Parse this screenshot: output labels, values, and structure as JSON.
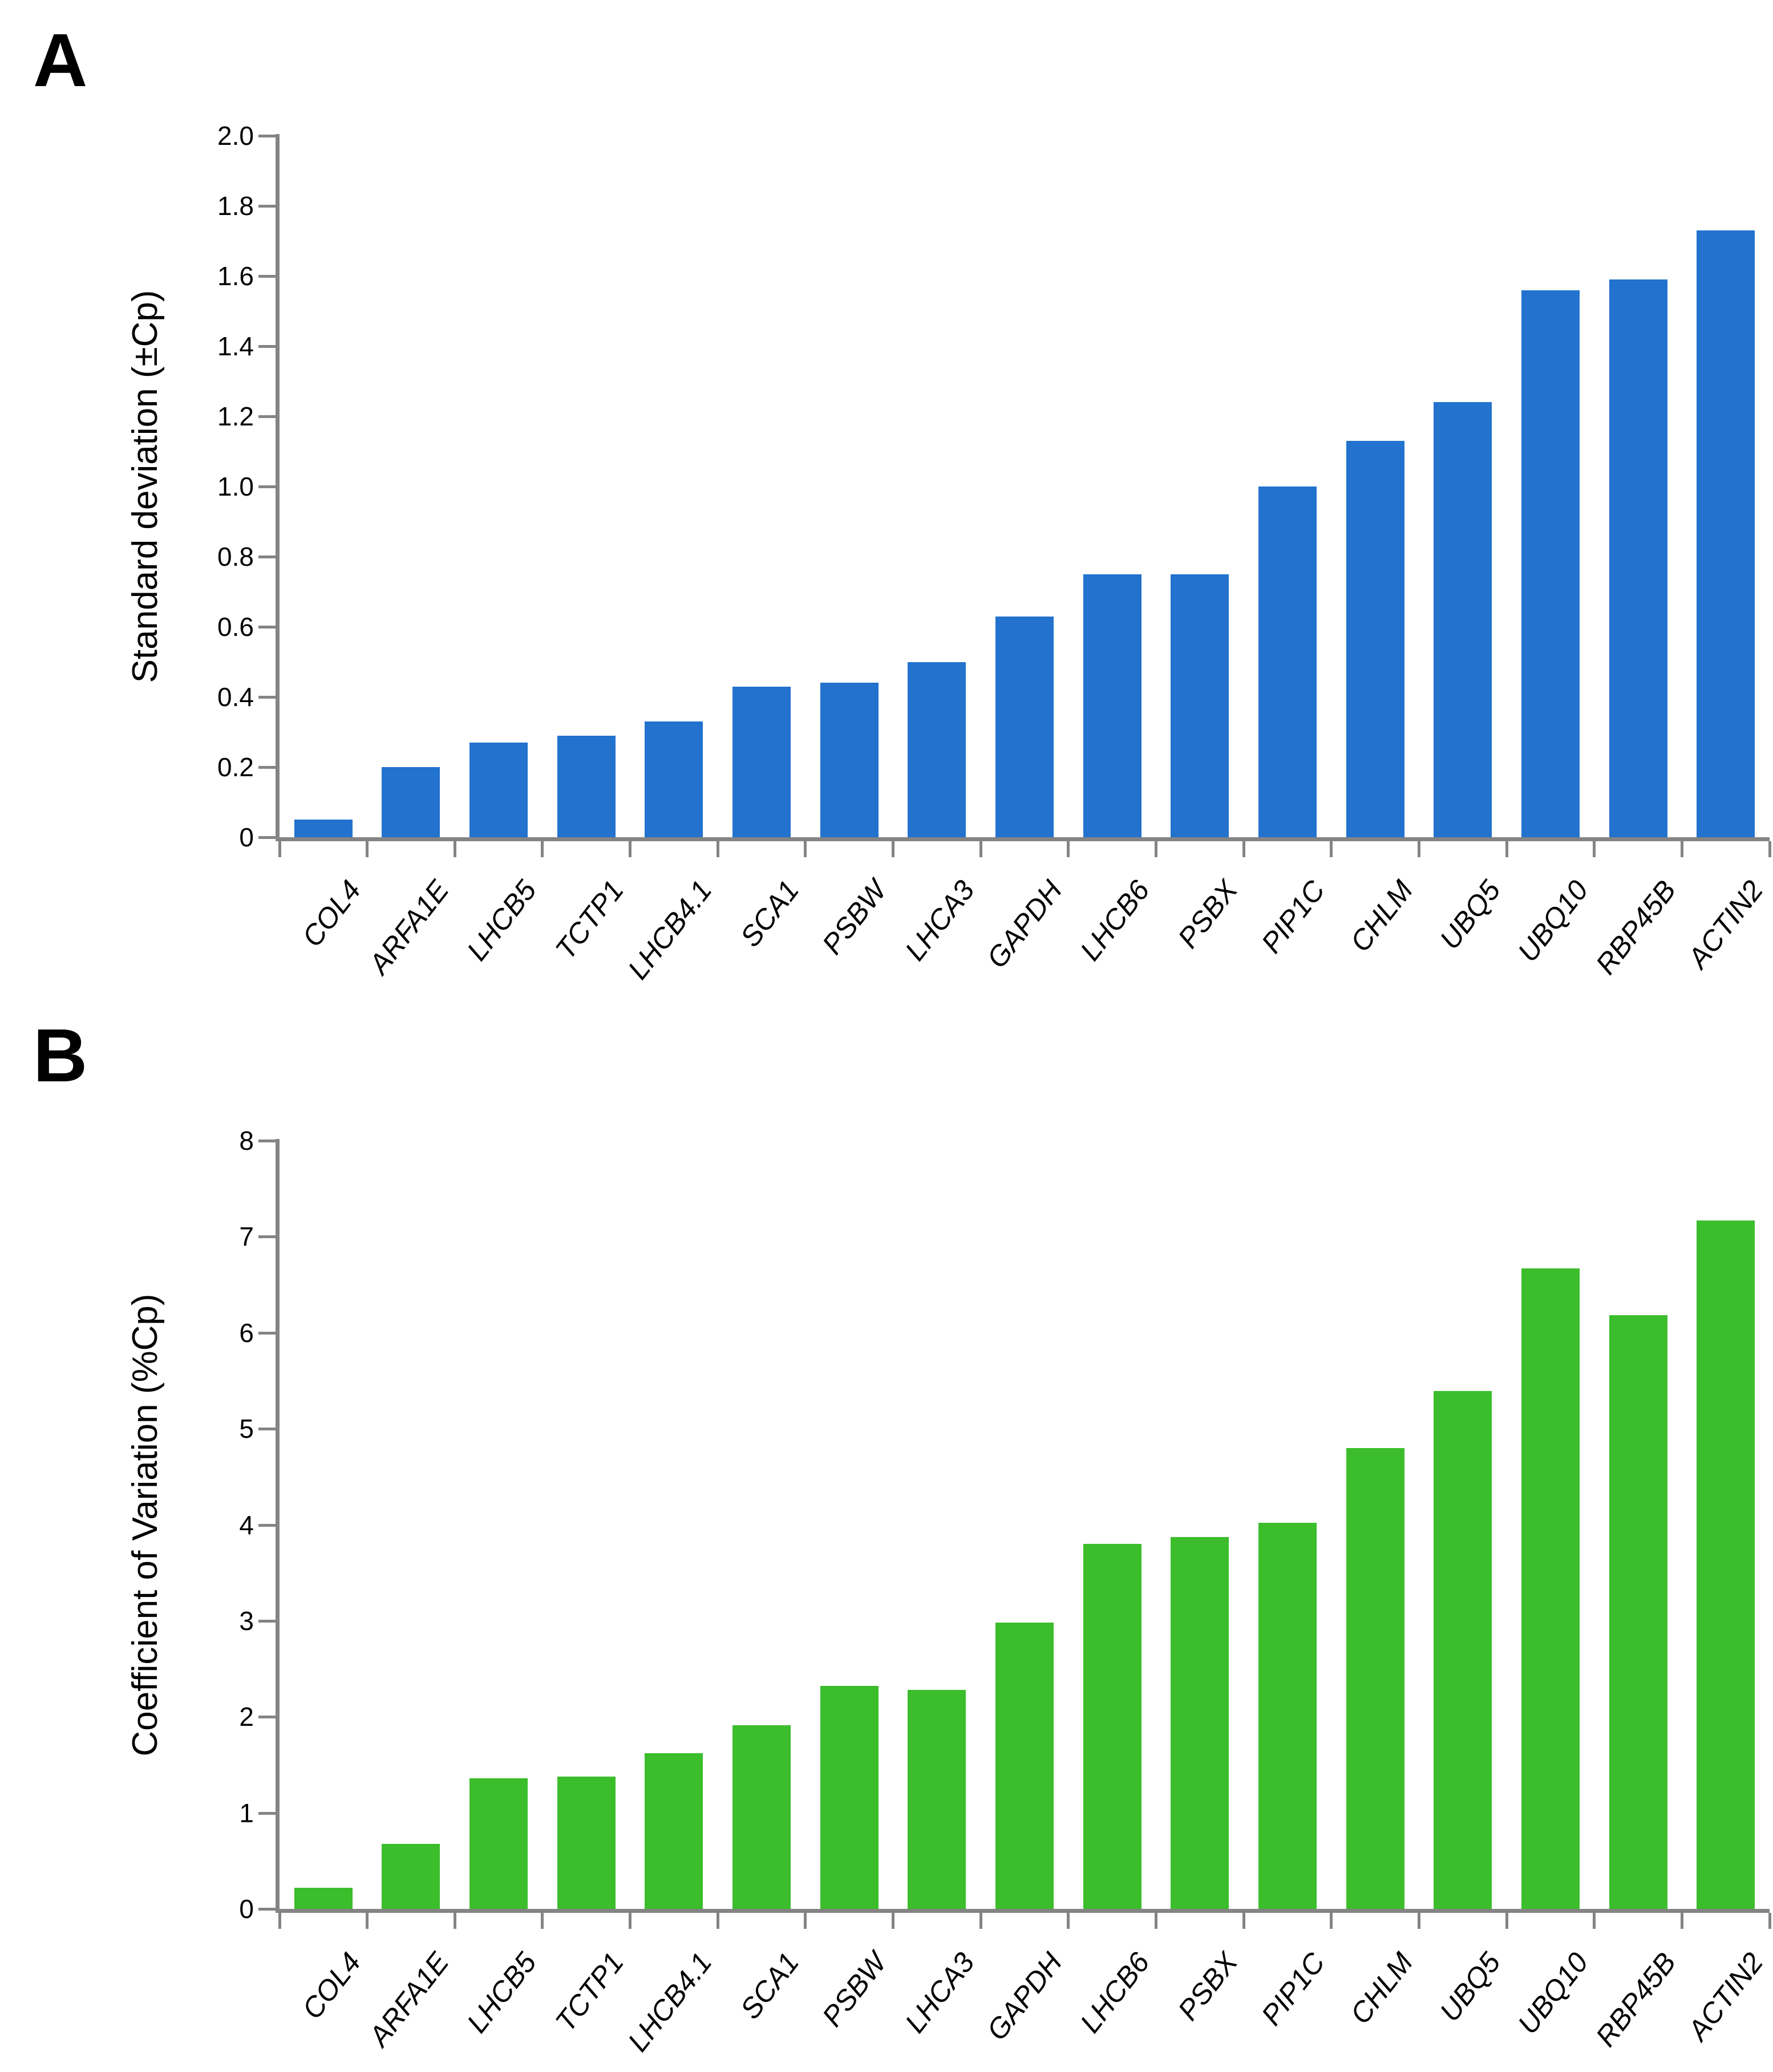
{
  "figure": {
    "description": "Two-panel bar chart figure comparing expression stability of candidate reference genes",
    "colors": {
      "background": "#FFFFFF",
      "axis_gray": "#848484",
      "text": "#000000",
      "panel_a_bar_blue": "#2272CE",
      "panel_b_bar_green": "#3BBD2C"
    }
  },
  "chart_data": [
    {
      "type": "bar",
      "panel_label": "A",
      "title": "",
      "xlabel": "",
      "ylabel": "Standard deviation (±Cp)",
      "ylim": [
        0,
        2.0
      ],
      "ytick_step": 0.2,
      "ytick_decimals": 1,
      "ytick_labels": [
        "0",
        "0.2",
        "0.4",
        "0.6",
        "0.8",
        "1.0",
        "1.2",
        "1.4",
        "1.6",
        "1.8",
        "2.0"
      ],
      "grid": false,
      "legend_position": "none",
      "bar_color": "#2272CE",
      "categories": [
        "COL4",
        "ARFA1E",
        "LHCB5",
        "TCTP1",
        "LHCB4.1",
        "SCA1",
        "PSBW",
        "LHCA3",
        "GAPDH",
        "LHCB6",
        "PSBX",
        "PIP1C",
        "CHLM",
        "UBQ5",
        "UBQ10",
        "RBP45B",
        "ACTIN2"
      ],
      "values": [
        0.05,
        0.2,
        0.27,
        0.29,
        0.33,
        0.43,
        0.44,
        0.5,
        0.63,
        0.75,
        0.75,
        1.0,
        1.13,
        1.24,
        1.56,
        1.59,
        1.73
      ]
    },
    {
      "type": "bar",
      "panel_label": "B",
      "title": "",
      "xlabel": "",
      "ylabel": "Coefficient of Variation (%Cp)",
      "ylim": [
        0,
        8
      ],
      "ytick_step": 1,
      "ytick_decimals": 0,
      "ytick_labels": [
        "0",
        "1",
        "2",
        "3",
        "4",
        "5",
        "6",
        "7",
        "8"
      ],
      "grid": false,
      "legend_position": "none",
      "bar_color": "#3BBD2C",
      "categories": [
        "COL4",
        "ARFA1E",
        "LHCB5",
        "TCTP1",
        "LHCB4.1",
        "SCA1",
        "PSBW",
        "LHCA3",
        "GAPDH",
        "LHCB6",
        "PSBX",
        "PIP1C",
        "CHLM",
        "UBQ5",
        "UBQ10",
        "RBP45B",
        "ACTIN2"
      ],
      "values": [
        0.22,
        0.68,
        1.36,
        1.38,
        1.62,
        1.91,
        2.32,
        2.28,
        2.98,
        3.8,
        3.87,
        4.02,
        4.8,
        5.39,
        6.67,
        6.18,
        7.17
      ]
    }
  ]
}
